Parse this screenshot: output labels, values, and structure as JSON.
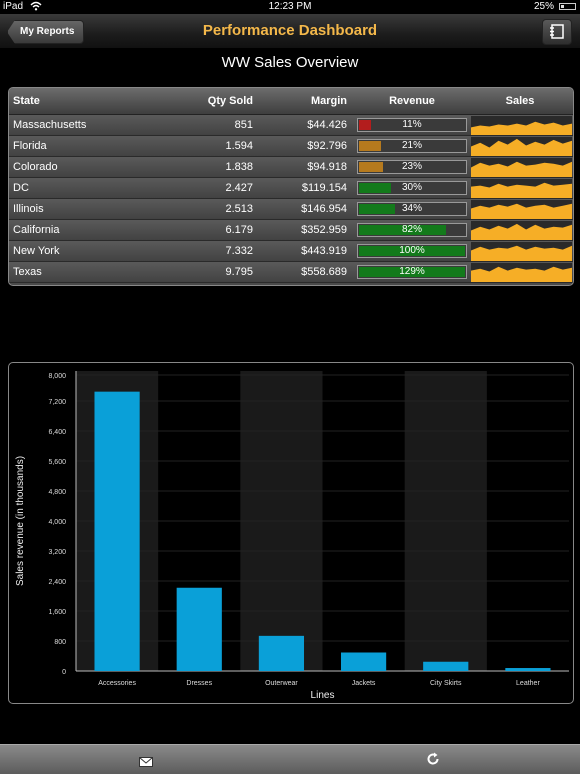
{
  "status": {
    "carrier": "iPad",
    "time": "12:23 PM",
    "battery": "25%"
  },
  "nav": {
    "back_label": "My Reports",
    "title": "Performance Dashboard"
  },
  "section_title": "WW Sales Overview",
  "table": {
    "headers": {
      "state": "State",
      "qty": "Qty Sold",
      "margin": "Margin",
      "revenue": "Revenue",
      "sales": "Sales"
    },
    "rows": [
      {
        "state": "Massachusetts",
        "qty": "851",
        "margin": "$44.426",
        "revenue": "11%",
        "rev_pct": 11,
        "rev_color": "#b31d1d",
        "spark": [
          0.4,
          0.5,
          0.45,
          0.55,
          0.5,
          0.6,
          0.5,
          0.7,
          0.55,
          0.65,
          0.5,
          0.6
        ]
      },
      {
        "state": "Florida",
        "qty": "1.594",
        "margin": "$92.796",
        "revenue": "21%",
        "rev_pct": 21,
        "rev_color": "#b67a1e",
        "spark": [
          0.5,
          0.7,
          0.45,
          0.8,
          0.6,
          0.9,
          0.55,
          0.75,
          0.6,
          0.85,
          0.65,
          0.8
        ]
      },
      {
        "state": "Colorado",
        "qty": "1.838",
        "margin": "$94.918",
        "revenue": "23%",
        "rev_pct": 23,
        "rev_color": "#b67a1e",
        "spark": [
          0.5,
          0.75,
          0.6,
          0.7,
          0.55,
          0.8,
          0.6,
          0.65,
          0.75,
          0.7,
          0.6,
          0.8
        ]
      },
      {
        "state": "DC",
        "qty": "2.427",
        "margin": "$119.154",
        "revenue": "30%",
        "rev_pct": 30,
        "rev_color": "#137a1b",
        "spark": [
          0.6,
          0.65,
          0.55,
          0.75,
          0.6,
          0.7,
          0.65,
          0.6,
          0.8,
          0.65,
          0.7,
          0.75
        ]
      },
      {
        "state": "Illinois",
        "qty": "2.513",
        "margin": "$146.954",
        "revenue": "34%",
        "rev_pct": 34,
        "rev_color": "#137a1b",
        "spark": [
          0.55,
          0.7,
          0.6,
          0.75,
          0.65,
          0.8,
          0.6,
          0.7,
          0.75,
          0.6,
          0.7,
          0.8
        ]
      },
      {
        "state": "California",
        "qty": "6.179",
        "margin": "$352.959",
        "revenue": "82%",
        "rev_pct": 82,
        "rev_color": "#137a1b",
        "spark": [
          0.5,
          0.7,
          0.55,
          0.75,
          0.6,
          0.85,
          0.55,
          0.8,
          0.6,
          0.7,
          0.65,
          0.8
        ]
      },
      {
        "state": "New York",
        "qty": "7.332",
        "margin": "$443.919",
        "revenue": "100%",
        "rev_pct": 100,
        "rev_color": "#137a1b",
        "spark": [
          0.55,
          0.75,
          0.6,
          0.7,
          0.65,
          0.8,
          0.6,
          0.75,
          0.65,
          0.7,
          0.6,
          0.8
        ]
      },
      {
        "state": "Texas",
        "qty": "9.795",
        "margin": "$558.689",
        "revenue": "129%",
        "rev_pct": 100,
        "rev_color": "#137a1b",
        "spark": [
          0.6,
          0.7,
          0.55,
          0.8,
          0.6,
          0.75,
          0.65,
          0.7,
          0.6,
          0.8,
          0.65,
          0.75
        ]
      }
    ]
  },
  "chart_data": {
    "type": "bar",
    "categories": [
      "Accessories",
      "Dresses",
      "Outerwear",
      "Jackets",
      "City Skirts",
      "Leather"
    ],
    "values": [
      7550,
      2250,
      950,
      500,
      250,
      80
    ],
    "xlabel": "Lines",
    "ylabel": "Sales revenue  (in thousands)",
    "ylim": [
      0,
      8000
    ],
    "yticks": [
      "0",
      "800",
      "1,600",
      "2,400",
      "3,200",
      "4,000",
      "4,800",
      "5,600",
      "6,400",
      "7,200",
      "8,000"
    ],
    "bar_color": "#0aa0d8",
    "band_color": "#1a1a1a",
    "grid": true
  },
  "toolbar": {
    "mail_icon": "mail-icon",
    "refresh_icon": "refresh-icon"
  }
}
